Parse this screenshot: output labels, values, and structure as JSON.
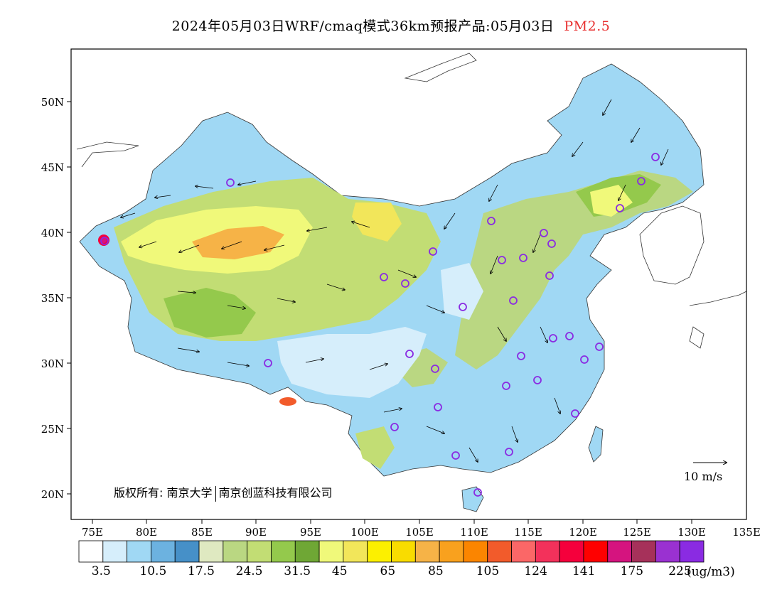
{
  "title": {
    "main": "2024年05月03日WRF/cmaq模式36km预报产品:05月03日",
    "pollutant": "PM2.5",
    "pollutant_color": "#e83030"
  },
  "axes": {
    "lon_labels": [
      "75E",
      "80E",
      "85E",
      "90E",
      "95E",
      "100E",
      "105E",
      "110E",
      "115E",
      "120E",
      "125E",
      "130E",
      "135E"
    ],
    "lat_labels": [
      "50N",
      "45N",
      "40N",
      "35N",
      "30N",
      "25N",
      "20N"
    ]
  },
  "copyright": {
    "prefix": "版权所有:",
    "org1": "南京大学",
    "org2": "南京创蓝科技有限公司"
  },
  "wind_reference": {
    "label": "10 m/s",
    "icon": "wind-arrow-icon"
  },
  "colorbar": {
    "colors": [
      "#ffffff",
      "#d6eefb",
      "#a0d8f4",
      "#6cb2e0",
      "#4690c8",
      "#dfe9c1",
      "#bad782",
      "#c2dd74",
      "#94c94c",
      "#6fa735",
      "#f0f97a",
      "#f2e65a",
      "#fcf000",
      "#f9dc00",
      "#f6b347",
      "#f9a11e",
      "#fb8500",
      "#f25b2b",
      "#fb6767",
      "#f3315b",
      "#f5003c",
      "#ff0000",
      "#d5147f",
      "#a6315a",
      "#9a31d1",
      "#8a2be2"
    ],
    "labels": [
      "3.5",
      "10.5",
      "17.5",
      "24.5",
      "31.5",
      "45",
      "65",
      "85",
      "105",
      "124",
      "141",
      "175",
      "225"
    ],
    "units": "(ug/m3)"
  },
  "monitoring_sites": {
    "icon": "site-circle-icon",
    "color": "#8a2be2"
  }
}
